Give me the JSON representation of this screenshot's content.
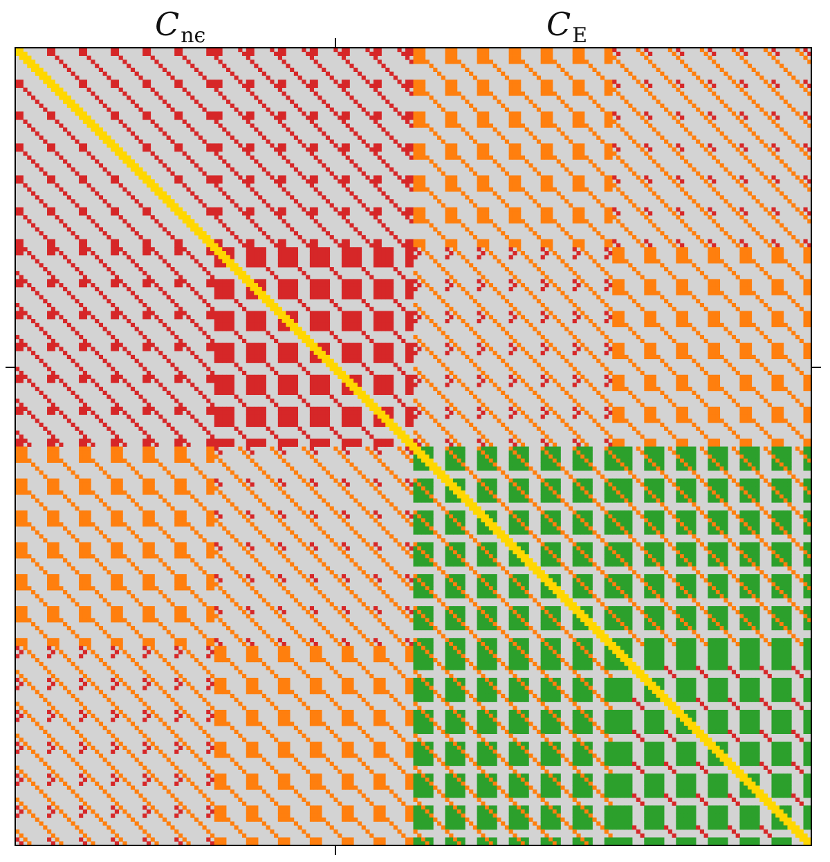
{
  "labels": {
    "left_symbol": "C",
    "left_subscript": "nϵ",
    "right_symbol": "C",
    "right_subscript": "E"
  },
  "colors": {
    "background": "#d3d3d3",
    "off_diag_nn": "#d62728",
    "coupling": "#ff7f0e",
    "off_diag_ee": "#2ca02c",
    "diagonal": "#ffd700",
    "frame": "#000000"
  },
  "matrix": {
    "blocks": 2,
    "cells_per_side": 200
  }
}
